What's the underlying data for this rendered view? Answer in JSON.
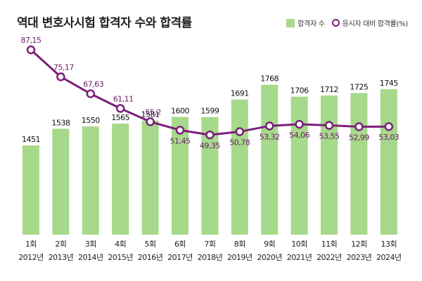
{
  "title": "역대 변호사시험 합격자 수와 합격률",
  "legend": {
    "bar_label": "합격자 수",
    "line_label": "응시자 대비 합격률(%)"
  },
  "colors": {
    "bar": "#a6d98a",
    "line": "#7b1f7b",
    "rate_text": "#6a1b6a"
  },
  "chart_data": {
    "type": "bar",
    "title": "역대 변호사시험 합격자 수와 합격률",
    "categories": [
      "1회",
      "2회",
      "3회",
      "4회",
      "5회",
      "6회",
      "7회",
      "8회",
      "9회",
      "10회",
      "11회",
      "12회",
      "13회"
    ],
    "years": [
      "2012년",
      "2013년",
      "2014년",
      "2015년",
      "2016년",
      "2017년",
      "2018년",
      "2019년",
      "2020년",
      "2021년",
      "2022년",
      "2023년",
      "2024년"
    ],
    "series": [
      {
        "name": "합격자 수",
        "type": "bar",
        "values": [
          1451,
          1538,
          1550,
          1565,
          1581,
          1600,
          1599,
          1691,
          1768,
          1706,
          1712,
          1725,
          1745
        ],
        "labels": [
          "1451",
          "1538",
          "1550",
          "1565",
          "1581",
          "1600",
          "1599",
          "1691",
          "1768",
          "1706",
          "1712",
          "1725",
          "1745"
        ]
      },
      {
        "name": "응시자 대비 합격률(%)",
        "type": "line",
        "values": [
          87.15,
          75.17,
          67.63,
          61.11,
          55.2,
          51.45,
          49.35,
          50.78,
          53.32,
          54.06,
          53.55,
          52.99,
          53.03
        ],
        "labels": [
          "87,15",
          "75,17",
          "67,63",
          "61,11",
          "55,2",
          "51,45",
          "49,35",
          "50,78",
          "53,32",
          "54,06",
          "53,55",
          "52,99",
          "53,03"
        ]
      }
    ],
    "xlabel": "",
    "ylabel": "",
    "grid": false
  }
}
